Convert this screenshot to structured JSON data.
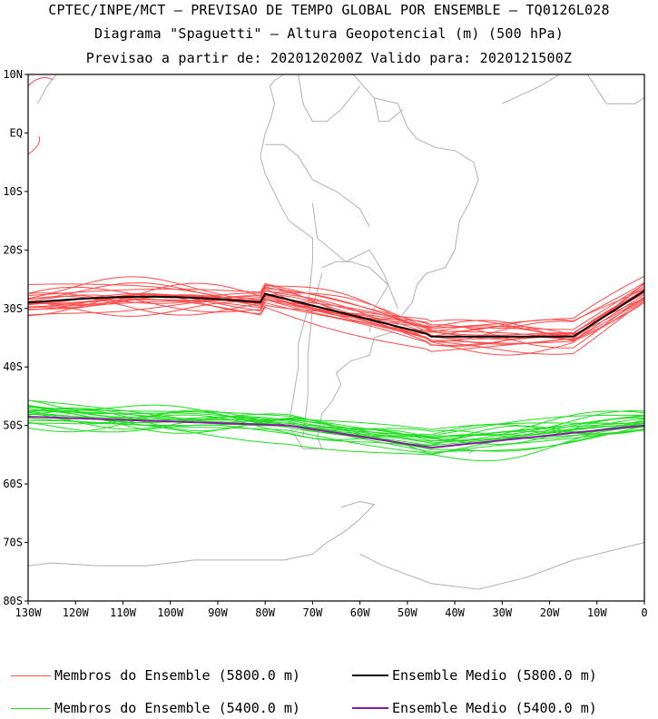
{
  "title": {
    "line1": "CPTEC/INPE/MCT – PREVISAO DE TEMPO GLOBAL POR ENSEMBLE – TQ0126L028",
    "line2": "Diagrama \"Spaguetti\" – Altura Geopotencial (m) (500 hPa)",
    "line3": "Previsao a partir de: 2020120200Z  Valido para: 2020121500Z"
  },
  "colors": {
    "members_5800": "#ff4a4a",
    "mean_5800": "#000000",
    "members_5400": "#22dd22",
    "mean_5400": "#8a1aa6",
    "coast": "#b0b0b0"
  },
  "axes": {
    "lat_labels": [
      "10N",
      "EQ",
      "10S",
      "20S",
      "30S",
      "40S",
      "50S",
      "60S",
      "70S",
      "80S"
    ],
    "lon_labels": [
      "130W",
      "120W",
      "110W",
      "100W",
      "90W",
      "80W",
      "70W",
      "60W",
      "50W",
      "40W",
      "30W",
      "20W",
      "10W",
      "0"
    ]
  },
  "legend": {
    "members_5800": "Membros do Ensemble (5800.0 m)",
    "mean_5800": "Ensemble Medio (5800.0 m)",
    "members_5400": "Membros do Ensemble (5400.0 m)",
    "mean_5400": "Ensemble Medio (5400.0 m)"
  }
}
